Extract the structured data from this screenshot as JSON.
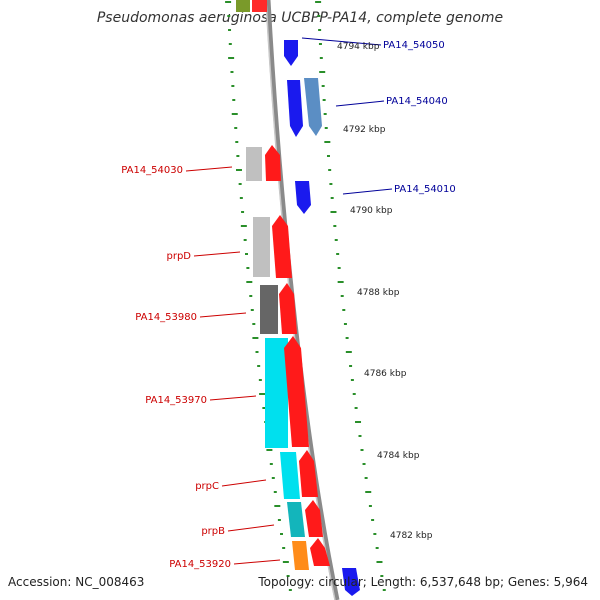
{
  "title": "Pseudomonas aeruginosa UCBPP-PA14, complete genome",
  "footer": {
    "accession": "Accession: NC_008463",
    "topology": "Topology: circular; Length: 6,537,648 bp; Genes: 5,964"
  },
  "colors": {
    "backbone": "#8a8a8a",
    "tick": "#2a8f2a",
    "label_forward": "#cc0000",
    "label_reverse": "#000099"
  },
  "scale_labels": [
    "4794 kbp",
    "4792 kbp",
    "4790 kbp",
    "4788 kbp",
    "4786 kbp",
    "4784 kbp",
    "4782 kbp"
  ],
  "gene_labels_left": [
    "PA14_54030",
    "prpD",
    "PA14_53980",
    "PA14_53970",
    "prpC",
    "prpB",
    "PA14_53920"
  ],
  "gene_labels_right": [
    "PA14_54050",
    "PA14_54040",
    "PA14_54010"
  ]
}
